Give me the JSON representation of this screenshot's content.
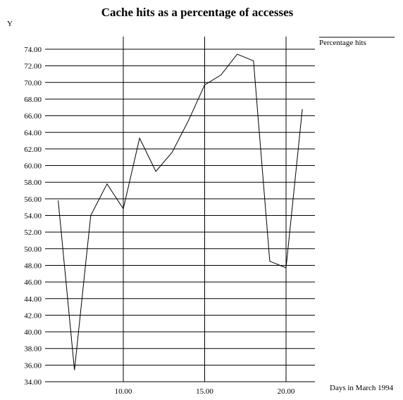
{
  "chart_data": {
    "type": "line",
    "title": "Cache hits as a percentage of accesses",
    "ylabel": "Y",
    "xlabel": "Days in March 1994",
    "xlim": [
      5.5,
      22
    ],
    "ylim": [
      34,
      74
    ],
    "x_ticks": [
      10,
      15,
      20
    ],
    "x_tick_labels": [
      "10.00",
      "15.00",
      "20.00"
    ],
    "y_ticks": [
      34,
      36,
      38,
      40,
      42,
      44,
      46,
      48,
      50,
      52,
      54,
      56,
      58,
      60,
      62,
      64,
      66,
      68,
      70,
      72,
      74
    ],
    "y_tick_labels": [
      "34.00",
      "36.00",
      "38.00",
      "40.00",
      "42.00",
      "44.00",
      "46.00",
      "48.00",
      "50.00",
      "52.00",
      "54.00",
      "56.00",
      "58.00",
      "60.00",
      "62.00",
      "64.00",
      "66.00",
      "68.00",
      "70.00",
      "72.00",
      "74.00"
    ],
    "grid": true,
    "legend_position": "top-right",
    "series": [
      {
        "name": "Percentage hits",
        "color": "#000000",
        "x": [
          6,
          7,
          8,
          9,
          10,
          11,
          12,
          13,
          14,
          15,
          16,
          17,
          18,
          19,
          20,
          21
        ],
        "y": [
          55.8,
          35.4,
          54.0,
          57.8,
          54.8,
          63.3,
          59.3,
          61.6,
          65.4,
          69.7,
          70.9,
          73.4,
          72.6,
          48.5,
          47.7,
          66.8
        ]
      }
    ]
  }
}
